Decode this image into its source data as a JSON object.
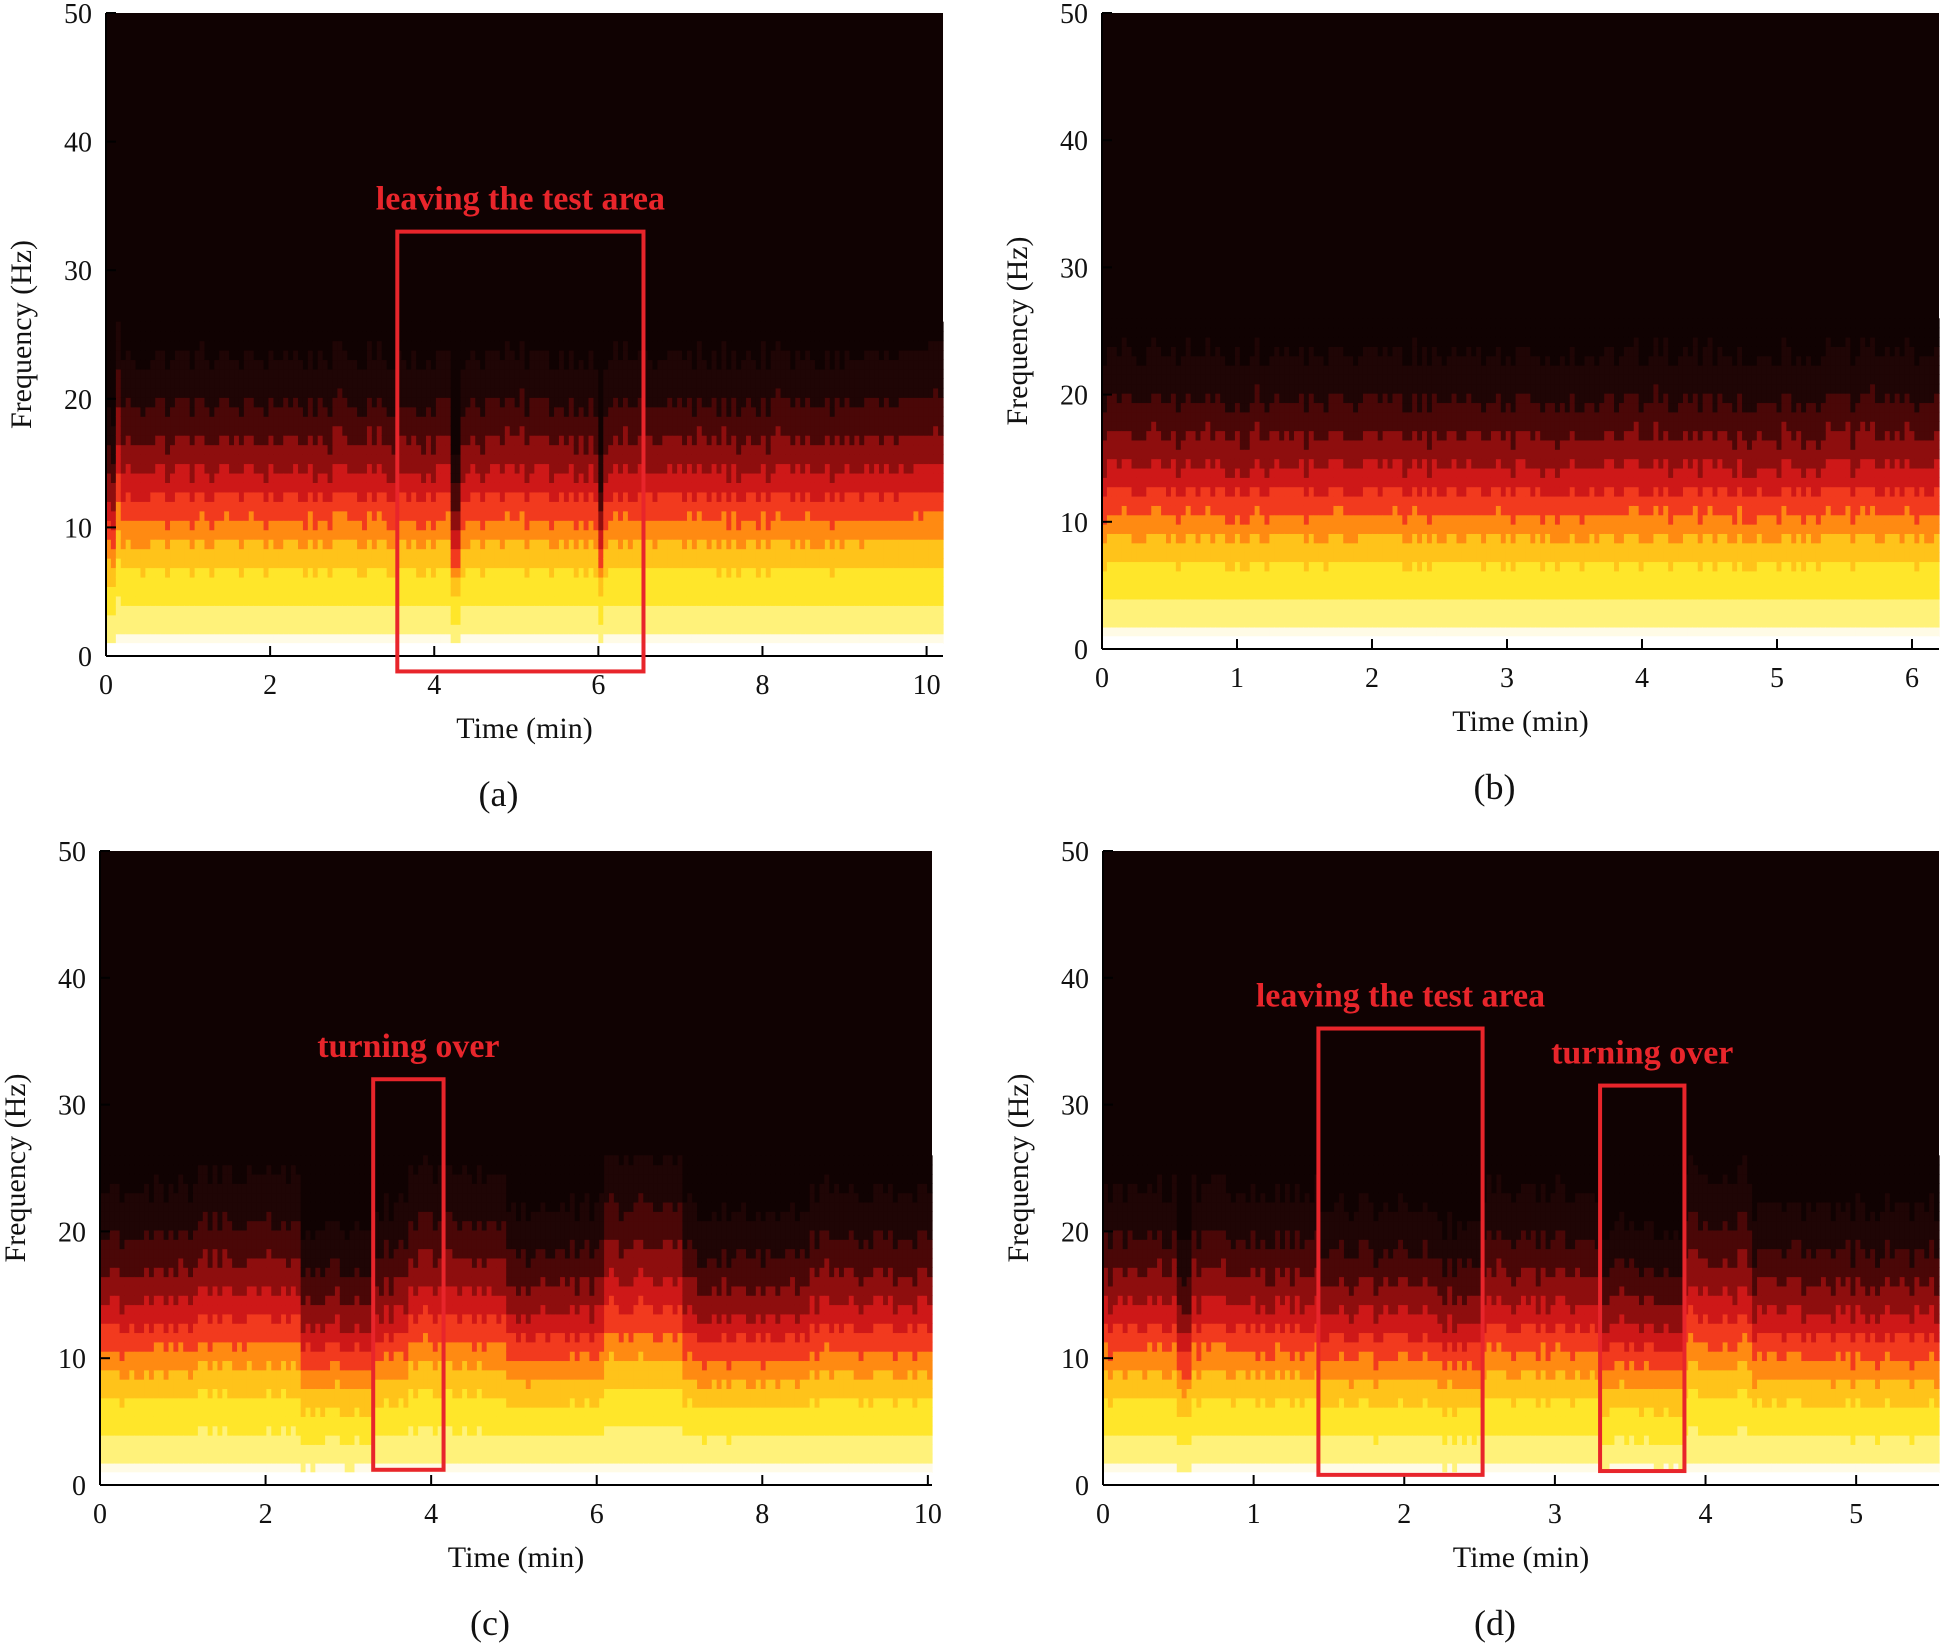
{
  "figure": {
    "colormap": [
      "#fffbe6",
      "#fff27a",
      "#ffe62a",
      "#ffc31a",
      "#ff8a12",
      "#f23a1e",
      "#ce1818",
      "#8e0e0e",
      "#4a0707",
      "#1f0505",
      "#100202"
    ],
    "annotation_color": "#e8252b"
  },
  "chart_data": [
    {
      "id": "a",
      "type": "heatmap",
      "caption": "(a)",
      "xlabel": "Time (min)",
      "ylabel": "Frequency (Hz)",
      "xlim": [
        0,
        10.2
      ],
      "ylim": [
        0,
        50
      ],
      "xticks": [
        0,
        2,
        4,
        6,
        8,
        10
      ],
      "yticks": [
        0,
        10,
        20,
        30,
        40,
        50
      ],
      "x_tick_labels": [
        "0",
        "2",
        "4",
        "6",
        "8",
        "10"
      ],
      "y_tick_labels": [
        "0",
        "10",
        "20",
        "30",
        "40",
        "50"
      ],
      "data_freq_range": [
        1,
        50
      ],
      "baseline_cutoff_hz": 16,
      "modulation": [
        {
          "t0": 0.0,
          "t1": 0.12,
          "shift": -3
        },
        {
          "t0": 0.12,
          "t1": 0.18,
          "shift": 2
        },
        {
          "t0": 4.2,
          "t1": 4.3,
          "shift": -5
        },
        {
          "t0": 6.0,
          "t1": 6.06,
          "shift": -5
        }
      ],
      "annotations": [
        {
          "label": "leaving the test area",
          "t0": 3.55,
          "t1": 6.55,
          "f0": -1.2,
          "f1": 33
        }
      ]
    },
    {
      "id": "b",
      "type": "heatmap",
      "caption": "(b)",
      "xlabel": "Time (min)",
      "ylabel": "Frequency (Hz)",
      "xlim": [
        0,
        6.2
      ],
      "ylim": [
        0,
        50
      ],
      "xticks": [
        0,
        1,
        2,
        3,
        4,
        5,
        6
      ],
      "yticks": [
        0,
        10,
        20,
        30,
        40,
        50
      ],
      "x_tick_labels": [
        "0",
        "1",
        "2",
        "3",
        "4",
        "5",
        "6"
      ],
      "y_tick_labels": [
        "0",
        "10",
        "20",
        "30",
        "40",
        "50"
      ],
      "data_freq_range": [
        1,
        50
      ],
      "baseline_cutoff_hz": 16,
      "modulation": [],
      "annotations": []
    },
    {
      "id": "c",
      "type": "heatmap",
      "caption": "(c)",
      "xlabel": "Time (min)",
      "ylabel": "Frequency (Hz)",
      "xlim": [
        0,
        10.05
      ],
      "ylim": [
        0,
        50
      ],
      "xticks": [
        0,
        2,
        4,
        6,
        8,
        10
      ],
      "yticks": [
        0,
        10,
        20,
        30,
        40,
        50
      ],
      "x_tick_labels": [
        "0",
        "2",
        "4",
        "6",
        "8",
        "10"
      ],
      "y_tick_labels": [
        "0",
        "10",
        "20",
        "30",
        "40",
        "50"
      ],
      "data_freq_range": [
        1,
        50
      ],
      "baseline_cutoff_hz": 16,
      "modulation": [
        {
          "t0": 1.2,
          "t1": 2.45,
          "shift": 1
        },
        {
          "t0": 2.45,
          "t1": 3.3,
          "shift": -2
        },
        {
          "t0": 3.3,
          "t1": 3.7,
          "shift": -1
        },
        {
          "t0": 3.7,
          "t1": 4.9,
          "shift": 1
        },
        {
          "t0": 4.9,
          "t1": 6.1,
          "shift": -1
        },
        {
          "t0": 6.1,
          "t1": 7.05,
          "shift": 2
        },
        {
          "t0": 7.05,
          "t1": 8.55,
          "shift": -1
        },
        {
          "t0": 8.55,
          "t1": 10.05,
          "shift": 0
        }
      ],
      "annotations": [
        {
          "label": "turning over",
          "t0": 3.3,
          "t1": 4.15,
          "f0": 1.2,
          "f1": 32
        }
      ]
    },
    {
      "id": "d",
      "type": "heatmap",
      "caption": "(d)",
      "xlabel": "Time (min)",
      "ylabel": "Frequency (Hz)",
      "xlim": [
        0,
        5.55
      ],
      "ylim": [
        0,
        50
      ],
      "xticks": [
        0,
        1,
        2,
        3,
        4,
        5
      ],
      "yticks": [
        0,
        10,
        20,
        30,
        40,
        50
      ],
      "x_tick_labels": [
        "0",
        "1",
        "2",
        "3",
        "4",
        "5"
      ],
      "y_tick_labels": [
        "0",
        "10",
        "20",
        "30",
        "40",
        "50"
      ],
      "data_freq_range": [
        1,
        50
      ],
      "baseline_cutoff_hz": 16,
      "modulation": [
        {
          "t0": 0.5,
          "t1": 0.6,
          "shift": -3
        },
        {
          "t0": 1.45,
          "t1": 2.15,
          "shift": -1
        },
        {
          "t0": 2.15,
          "t1": 2.5,
          "shift": -2
        },
        {
          "t0": 3.3,
          "t1": 3.85,
          "shift": -2
        },
        {
          "t0": 3.85,
          "t1": 4.3,
          "shift": 1
        },
        {
          "t0": 4.3,
          "t1": 5.55,
          "shift": -1
        }
      ],
      "annotations": [
        {
          "label": "leaving the test area",
          "t0": 1.43,
          "t1": 2.52,
          "f0": 0.8,
          "f1": 36
        },
        {
          "label": "turning over",
          "t0": 3.3,
          "t1": 3.86,
          "f0": 1.1,
          "f1": 31.5
        }
      ]
    }
  ]
}
